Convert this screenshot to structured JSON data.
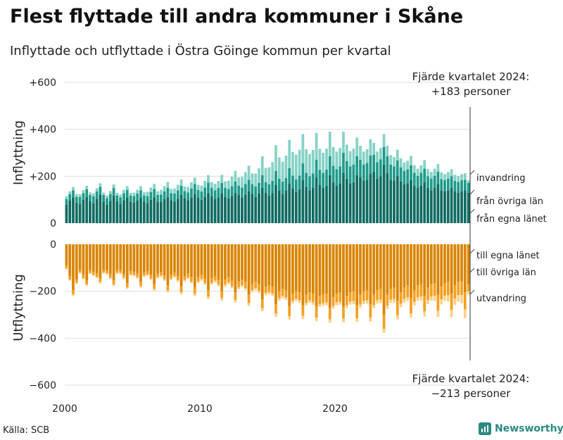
{
  "title": "Flest flyttade till andra kommuner i Skåne",
  "subtitle": "Inflyttade och utflyttade i Östra Göinge kommun per kvartal",
  "source": "Källa: SCB",
  "brand": "Newsworthy",
  "colors": {
    "in_egna": "#0f6b61",
    "in_ovriga": "#1f9a8a",
    "in_invandring": "#86d2c7",
    "out_egna": "#d98502",
    "out_ovriga": "#f4a021",
    "out_utvandring": "#fbd08c",
    "grid": "#dddddd",
    "axis": "#333333"
  },
  "chart_data": {
    "type": "bar",
    "x_ticks": [
      "2000",
      "2010",
      "2020"
    ],
    "y_ticks": [
      "+600",
      "+400",
      "+200",
      "0",
      "0",
      "−200",
      "−400",
      "−600"
    ],
    "ylabel_top": "Inflyttning",
    "ylabel_bottom": "Utflyttning",
    "start_year": 2000,
    "inflow_ylim": [
      0,
      600
    ],
    "outflow_ylim": [
      -600,
      0
    ],
    "annotation_top": {
      "line1": "Fjärde kvartalet 2024:",
      "line2": "+183 personer"
    },
    "annotation_bottom": {
      "line1": "Fjärde kvartalet 2024:",
      "line2": "−213 personer"
    },
    "legend_in": [
      "invandring",
      "från övriga län",
      "från egna länet"
    ],
    "legend_out": [
      "till egna länet",
      "till övriga län",
      "utvandring"
    ],
    "series": [
      {
        "name": "från egna länet",
        "group": "inflyttning",
        "values": [
          78,
          96,
          110,
          88,
          82,
          100,
          112,
          95,
          85,
          104,
          120,
          92,
          80,
          95,
          118,
          93,
          82,
          98,
          108,
          90,
          88,
          96,
          108,
          92,
          86,
          100,
          110,
          92,
          90,
          102,
          112,
          98,
          92,
          104,
          120,
          105,
          96,
          110,
          125,
          108,
          100,
          112,
          128,
          115,
          102,
          110,
          126,
          112,
          106,
          116,
          130,
          120,
          110,
          122,
          135,
          125,
          112,
          126,
          150,
          130,
          118,
          130,
          162,
          140,
          125,
          138,
          170,
          148,
          132,
          145,
          185,
          155,
          140,
          150,
          195,
          162,
          150,
          160,
          205,
          175,
          160,
          170,
          215,
          190,
          170,
          175,
          205,
          195,
          180,
          185,
          210,
          220,
          190,
          200,
          250,
          215,
          185,
          180,
          200,
          178,
          165,
          170,
          185,
          160,
          150,
          160,
          175,
          150,
          140,
          150,
          165,
          140,
          135,
          140,
          150,
          135,
          130,
          135,
          140,
          130
        ]
      },
      {
        "name": "från övriga län",
        "group": "inflyttning",
        "values": [
          25,
          28,
          30,
          25,
          30,
          28,
          32,
          26,
          30,
          32,
          35,
          28,
          27,
          30,
          33,
          26,
          28,
          30,
          34,
          27,
          28,
          30,
          32,
          26,
          30,
          32,
          36,
          28,
          32,
          34,
          38,
          30,
          34,
          36,
          40,
          32,
          35,
          38,
          42,
          34,
          35,
          40,
          45,
          36,
          38,
          40,
          45,
          38,
          40,
          42,
          48,
          40,
          42,
          45,
          50,
          42,
          44,
          46,
          55,
          45,
          48,
          50,
          60,
          50,
          52,
          55,
          65,
          55,
          55,
          58,
          70,
          60,
          60,
          62,
          75,
          65,
          65,
          68,
          80,
          70,
          70,
          72,
          85,
          75,
          72,
          75,
          80,
          75,
          70,
          72,
          78,
          72,
          70,
          72,
          75,
          70,
          65,
          62,
          68,
          60,
          58,
          60,
          62,
          55,
          52,
          55,
          58,
          50,
          50,
          52,
          55,
          48,
          48,
          50,
          50,
          45,
          46,
          48,
          45,
          42
        ]
      },
      {
        "name": "invandring",
        "group": "inflyttning",
        "values": [
          12,
          12,
          14,
          10,
          12,
          13,
          15,
          10,
          12,
          13,
          15,
          10,
          11,
          12,
          14,
          10,
          12,
          14,
          16,
          12,
          14,
          16,
          18,
          14,
          18,
          20,
          22,
          16,
          20,
          22,
          25,
          18,
          22,
          24,
          26,
          20,
          24,
          26,
          28,
          22,
          25,
          28,
          32,
          24,
          28,
          30,
          35,
          28,
          35,
          40,
          45,
          35,
          45,
          50,
          60,
          45,
          55,
          62,
          80,
          60,
          72,
          80,
          110,
          90,
          85,
          95,
          120,
          100,
          105,
          110,
          125,
          100,
          95,
          100,
          115,
          90,
          85,
          90,
          105,
          80,
          75,
          78,
          90,
          70,
          65,
          68,
          80,
          60,
          55,
          58,
          70,
          50,
          45,
          48,
          55,
          45,
          40,
          40,
          45,
          38,
          35,
          36,
          40,
          32,
          30,
          32,
          36,
          30,
          28,
          30,
          32,
          28,
          26,
          28,
          30,
          26,
          25,
          26,
          28,
          11
        ]
      },
      {
        "name": "till egna länet",
        "group": "utflyttning",
        "values": [
          -90,
          -135,
          -195,
          -150,
          -108,
          -130,
          -155,
          -110,
          -118,
          -125,
          -145,
          -108,
          -112,
          -128,
          -155,
          -110,
          -110,
          -128,
          -165,
          -115,
          -118,
          -125,
          -160,
          -120,
          -115,
          -130,
          -170,
          -125,
          -118,
          -132,
          -175,
          -130,
          -120,
          -135,
          -180,
          -135,
          -125,
          -140,
          -185,
          -140,
          -130,
          -145,
          -195,
          -145,
          -135,
          -150,
          -200,
          -150,
          -140,
          -155,
          -205,
          -160,
          -150,
          -160,
          -215,
          -170,
          -160,
          -170,
          -235,
          -180,
          -175,
          -180,
          -255,
          -200,
          -190,
          -195,
          -265,
          -210,
          -200,
          -205,
          -260,
          -215,
          -205,
          -210,
          -265,
          -220,
          -215,
          -210,
          -270,
          -225,
          -210,
          -205,
          -265,
          -220,
          -205,
          -200,
          -260,
          -215,
          -200,
          -195,
          -255,
          -215,
          -195,
          -190,
          -300,
          -215,
          -190,
          -185,
          -240,
          -205,
          -185,
          -175,
          -230,
          -195,
          -175,
          -170,
          -220,
          -185,
          -170,
          -165,
          -215,
          -180,
          -165,
          -160,
          -210,
          -175,
          -160,
          -158,
          -205,
          -170
        ]
      },
      {
        "name": "till övriga län",
        "group": "utflyttning",
        "values": [
          -12,
          -15,
          -18,
          -14,
          -12,
          -14,
          -16,
          -12,
          -12,
          -14,
          -16,
          -12,
          -12,
          -14,
          -17,
          -12,
          -12,
          -14,
          -18,
          -13,
          -13,
          -15,
          -18,
          -14,
          -14,
          -16,
          -20,
          -15,
          -15,
          -17,
          -22,
          -16,
          -16,
          -18,
          -24,
          -17,
          -17,
          -19,
          -26,
          -18,
          -18,
          -20,
          -28,
          -20,
          -20,
          -22,
          -30,
          -22,
          -22,
          -24,
          -32,
          -24,
          -24,
          -26,
          -35,
          -26,
          -26,
          -28,
          -38,
          -28,
          -28,
          -30,
          -40,
          -30,
          -30,
          -32,
          -42,
          -32,
          -32,
          -34,
          -45,
          -34,
          -34,
          -36,
          -48,
          -36,
          -36,
          -38,
          -50,
          -38,
          -38,
          -40,
          -52,
          -40,
          -40,
          -42,
          -55,
          -42,
          -42,
          -44,
          -58,
          -44,
          -44,
          -46,
          -60,
          -46,
          -46,
          -48,
          -62,
          -48,
          -48,
          -50,
          -64,
          -50,
          -50,
          -52,
          -66,
          -52,
          -52,
          -54,
          -68,
          -54,
          -54,
          -56,
          -70,
          -56,
          -56,
          -58,
          -72,
          -30
        ]
      },
      {
        "name": "utvandring",
        "group": "utflyttning",
        "values": [
          -5,
          -5,
          -6,
          -5,
          -5,
          -5,
          -6,
          -5,
          -5,
          -5,
          -6,
          -5,
          -5,
          -6,
          -6,
          -5,
          -5,
          -6,
          -7,
          -5,
          -5,
          -6,
          -7,
          -5,
          -5,
          -6,
          -8,
          -6,
          -6,
          -7,
          -8,
          -6,
          -6,
          -7,
          -9,
          -6,
          -6,
          -7,
          -9,
          -7,
          -7,
          -8,
          -10,
          -7,
          -7,
          -8,
          -10,
          -8,
          -8,
          -9,
          -11,
          -8,
          -8,
          -9,
          -12,
          -9,
          -9,
          -10,
          -12,
          -9,
          -9,
          -10,
          -13,
          -10,
          -10,
          -11,
          -14,
          -10,
          -10,
          -11,
          -14,
          -11,
          -11,
          -12,
          -15,
          -11,
          -11,
          -12,
          -15,
          -12,
          -12,
          -13,
          -16,
          -12,
          -12,
          -13,
          -16,
          -13,
          -13,
          -14,
          -17,
          -13,
          -14,
          -15,
          -18,
          -14,
          -14,
          -15,
          -18,
          -15,
          -15,
          -16,
          -19,
          -15,
          -16,
          -18,
          -22,
          -18,
          -18,
          -22,
          -26,
          -22,
          -22,
          -28,
          -32,
          -28,
          -28,
          -35,
          -38,
          -13
        ]
      }
    ]
  }
}
